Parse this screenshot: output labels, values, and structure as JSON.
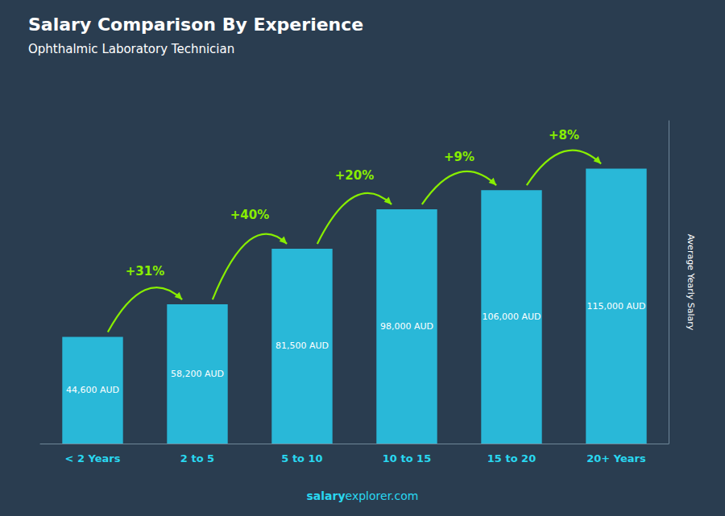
{
  "chart_data": {
    "type": "bar",
    "title": "Salary Comparison By Experience",
    "subtitle": "Ophthalmic Laboratory Technician",
    "ylabel": "Average Yearly Salary",
    "categories": [
      "< 2 Years",
      "2 to 5",
      "5 to 10",
      "10 to 15",
      "15 to 20",
      "20+ Years"
    ],
    "values": [
      44600,
      58200,
      81500,
      98000,
      106000,
      115000
    ],
    "value_labels": [
      "44,600 AUD",
      "58,200 AUD",
      "81,500 AUD",
      "98,000 AUD",
      "106,000 AUD",
      "115,000 AUD"
    ],
    "data_labels": true,
    "color": "#29b8d8",
    "ylim": [
      0,
      135000
    ],
    "grid": false,
    "tick_labels": "x",
    "annotations": [
      {
        "text": "+31%",
        "from": "< 2 Years",
        "to": "2 to 5"
      },
      {
        "text": "+40%",
        "from": "2 to 5",
        "to": "5 to 10"
      },
      {
        "text": "+20%",
        "from": "5 to 10",
        "to": "10 to 15"
      },
      {
        "text": "+9%",
        "from": "10 to 15",
        "to": "15 to 20"
      },
      {
        "text": "+8%",
        "from": "15 to 20",
        "to": "20+ Years"
      },
      {
        "text": "salary"
      },
      {
        "text": "explorer.com"
      }
    ]
  }
}
